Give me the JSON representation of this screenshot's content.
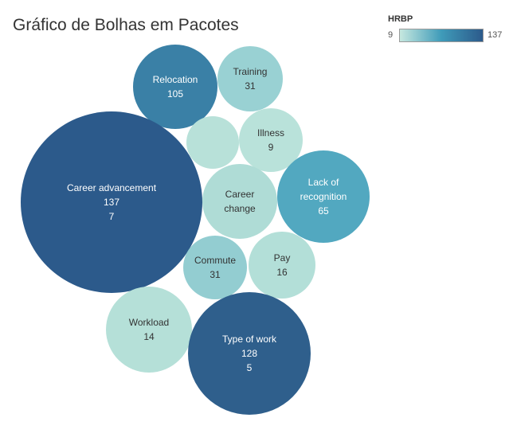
{
  "chart_data": {
    "type": "packed-bubble",
    "title": "Gráfico de Bolhas em Pacotes",
    "color_legend": {
      "title": "HRBP",
      "min_label": "9",
      "max_label": "137",
      "min_value": 9,
      "max_value": 137,
      "colors": [
        "#c6e8df",
        "#3f9bb9",
        "#2c5a8b"
      ]
    },
    "bubbles": [
      {
        "name": "Relocation",
        "lines": [
          "Relocation",
          "105"
        ],
        "value": 105,
        "color": "#3a80a6"
      },
      {
        "name": "Training",
        "lines": [
          "Training",
          "31"
        ],
        "value": 31,
        "color": "#99d1d3"
      },
      {
        "name": "(unlabeled)",
        "lines": [],
        "value": 14,
        "color": "#b8e1d9"
      },
      {
        "name": "Illness",
        "lines": [
          "Illness",
          "9"
        ],
        "value": 9,
        "color": "#b9e2da"
      },
      {
        "name": "Career advancement",
        "lines": [
          "Career advancement",
          "137",
          "7"
        ],
        "value": 137,
        "color": "#2c5a8b"
      },
      {
        "name": "Career change",
        "lines": [
          "Career",
          "change"
        ],
        "value": 22,
        "color": "#afdcd6"
      },
      {
        "name": "Lack of recognition",
        "lines": [
          "Lack of",
          "recognition",
          "65"
        ],
        "value": 65,
        "color": "#52a8c0"
      },
      {
        "name": "Commute",
        "lines": [
          "Commute",
          "31"
        ],
        "value": 31,
        "color": "#93cdd1"
      },
      {
        "name": "Pay",
        "lines": [
          "Pay",
          "16"
        ],
        "value": 16,
        "color": "#b3dfd8"
      },
      {
        "name": "Workload",
        "lines": [
          "Workload",
          "14"
        ],
        "value": 14,
        "color": "#b5e0d8"
      },
      {
        "name": "Type of work",
        "lines": [
          "Type of work",
          "128",
          "5"
        ],
        "value": 128,
        "color": "#2f5f8c"
      }
    ]
  }
}
